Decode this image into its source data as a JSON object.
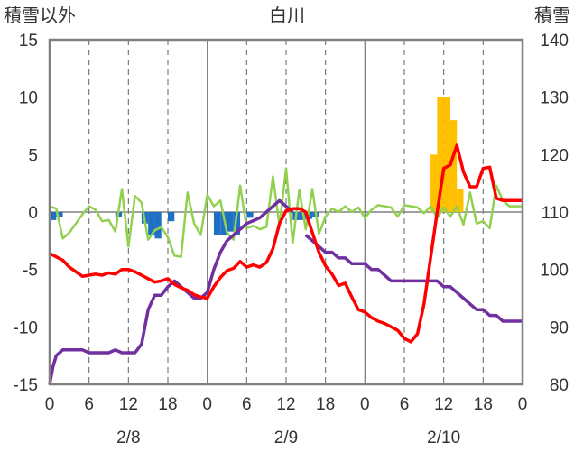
{
  "chart_data": {
    "type": "bar+line",
    "title": "白川",
    "ylabel_left": "積雪以外",
    "ylabel_right": "積雪",
    "ylim_left": [
      -15,
      15
    ],
    "yticks_left": [
      15,
      10,
      5,
      0,
      -5,
      -10,
      -15
    ],
    "ylim_right": [
      80,
      140
    ],
    "yticks_right": [
      140,
      130,
      120,
      110,
      100,
      90,
      80
    ],
    "x_range_hours": [
      0,
      72
    ],
    "x_tick_labels": [
      "0",
      "6",
      "12",
      "18",
      "0",
      "6",
      "12",
      "18",
      "0",
      "6",
      "12",
      "18",
      "0"
    ],
    "date_labels": [
      "2/8",
      "2/9",
      "2/10"
    ],
    "grid": "dashed vertical every 6h, solid at day boundaries, solid horizontal at 0",
    "colors": {
      "snow_bar": "#ffc000",
      "negative_bar": "#1f6fc5",
      "red_line": "#ff0000",
      "purple_line": "#7030a0",
      "green_line": "#92d050"
    },
    "blue_bars": {
      "x": [
        0,
        1,
        10,
        14,
        15,
        16,
        18,
        25,
        26,
        27,
        28,
        30,
        37,
        38,
        39,
        40
      ],
      "values": [
        -0.7,
        -0.4,
        -0.4,
        -1.0,
        -2.0,
        -2.3,
        -0.8,
        -2.0,
        -2.0,
        -1.7,
        -2.0,
        -0.5,
        -0.7,
        -0.7,
        -0.6,
        -0.4
      ]
    },
    "yellow_bars": {
      "x": [
        58,
        59,
        60,
        61,
        62
      ],
      "values": [
        5,
        10,
        10,
        8,
        2
      ]
    },
    "red_series": {
      "x": [
        0,
        1,
        2,
        3,
        4,
        5,
        6,
        7,
        8,
        9,
        10,
        11,
        12,
        13,
        14,
        15,
        16,
        17,
        18,
        19,
        20,
        21,
        22,
        23,
        24,
        25,
        26,
        27,
        28,
        29,
        30,
        31,
        32,
        33,
        34,
        35,
        36,
        37,
        38,
        39,
        40,
        41,
        42,
        43,
        44,
        45,
        46,
        47,
        48,
        49,
        50,
        51,
        52,
        53,
        54,
        55,
        56,
        57,
        58,
        59,
        60,
        61,
        62,
        63,
        64,
        65,
        66,
        67,
        68,
        69,
        70,
        71,
        72
      ],
      "values": [
        -3.6,
        -3.9,
        -4.2,
        -4.8,
        -5.2,
        -5.6,
        -5.5,
        -5.4,
        -5.5,
        -5.3,
        -5.4,
        -5.0,
        -5.0,
        -5.2,
        -5.5,
        -5.8,
        -6.1,
        -6.0,
        -5.8,
        -6.3,
        -6.6,
        -6.8,
        -7.2,
        -7.4,
        -7.5,
        -6.5,
        -5.7,
        -5.1,
        -4.9,
        -4.3,
        -4.8,
        -4.6,
        -4.8,
        -4.4,
        -3.2,
        -1.0,
        0.1,
        0.3,
        0.3,
        0.0,
        -1.8,
        -3.5,
        -4.7,
        -5.4,
        -6.4,
        -6.2,
        -7.4,
        -8.5,
        -8.7,
        -9.2,
        -9.5,
        -9.7,
        -10.0,
        -10.3,
        -11.0,
        -11.3,
        -10.6,
        -8.0,
        -4.0,
        0.0,
        3.8,
        4.1,
        5.8,
        3.5,
        2.2,
        2.2,
        3.8,
        3.9,
        1.2,
        1.0,
        1.0,
        1.0,
        1.0
      ]
    },
    "purple_series": {
      "x": [
        0,
        0.5,
        1,
        2,
        3,
        4,
        5,
        6,
        7,
        8,
        9,
        10,
        11,
        12,
        13,
        14,
        15,
        16,
        17,
        18,
        19,
        20,
        21,
        22,
        23,
        24,
        25,
        26,
        27,
        28,
        29,
        30,
        31,
        32,
        33,
        34,
        35,
        36,
        37,
        38,
        39,
        40,
        41,
        42,
        43,
        44,
        45,
        46,
        47,
        48,
        49,
        50,
        51,
        52,
        53,
        54,
        55,
        56,
        57,
        58,
        59,
        60,
        61,
        62,
        63,
        64,
        65,
        66,
        67,
        68,
        69,
        70,
        71,
        72
      ],
      "values": [
        80,
        83,
        85,
        86,
        86,
        86,
        86,
        85.5,
        85.5,
        85.5,
        85.5,
        86,
        85.5,
        85.5,
        85.5,
        87,
        93,
        95.5,
        95.5,
        97,
        98,
        97,
        96,
        95,
        95,
        96,
        100,
        103,
        105,
        106,
        107,
        108,
        108.5,
        109,
        110,
        111,
        112,
        111,
        110,
        null,
        106,
        105,
        104,
        103,
        103,
        102,
        102,
        101,
        101,
        101,
        100,
        100,
        99,
        98,
        98,
        98,
        98,
        98,
        98,
        98,
        98,
        97,
        97,
        96,
        95,
        94,
        93,
        93,
        92,
        92,
        91,
        91,
        91,
        91
      ]
    },
    "green_series": {
      "x": [
        0,
        1,
        2,
        3,
        4,
        5,
        6,
        7,
        8,
        9,
        10,
        11,
        12,
        13,
        14,
        15,
        16,
        17,
        18,
        19,
        20,
        21,
        22,
        23,
        24,
        25,
        26,
        27,
        28,
        29,
        30,
        31,
        32,
        33,
        34,
        35,
        36,
        37,
        38,
        39,
        40,
        41,
        42,
        43,
        44,
        45,
        46,
        47,
        48,
        49,
        50,
        51,
        52,
        53,
        54,
        55,
        56,
        57,
        58,
        59,
        60,
        61,
        62,
        63,
        64,
        65,
        66,
        67,
        68,
        69,
        70,
        71,
        72
      ],
      "values": [
        0.5,
        0.3,
        -2.3,
        -1.8,
        -1.0,
        -0.2,
        0.5,
        0.2,
        -0.8,
        -0.7,
        -1.7,
        2.0,
        -3.0,
        1.4,
        0.8,
        -2.4,
        -1.6,
        -1.3,
        -2.2,
        -3.8,
        -3.9,
        1.7,
        -1.0,
        -2.0,
        1.5,
        0.5,
        1.0,
        -1.8,
        -2.4,
        2.3,
        -1.4,
        -1.2,
        -1.5,
        -1.3,
        3.1,
        -1.2,
        3.8,
        -2.7,
        1.9,
        -1.5,
        2.0,
        -1.9,
        -0.4,
        0.3,
        0.0,
        0.5,
        0.0,
        0.4,
        -0.5,
        0.2,
        0.6,
        0.5,
        0.4,
        -0.4,
        0.6,
        0.5,
        0.4,
        -0.1,
        0.5,
        -0.5,
        0.4,
        -0.4,
        0.5,
        -1.1,
        1.7,
        -1.0,
        -0.8,
        -1.4,
        2.3,
        1.0,
        0.5,
        0.5,
        0.5
      ]
    }
  }
}
